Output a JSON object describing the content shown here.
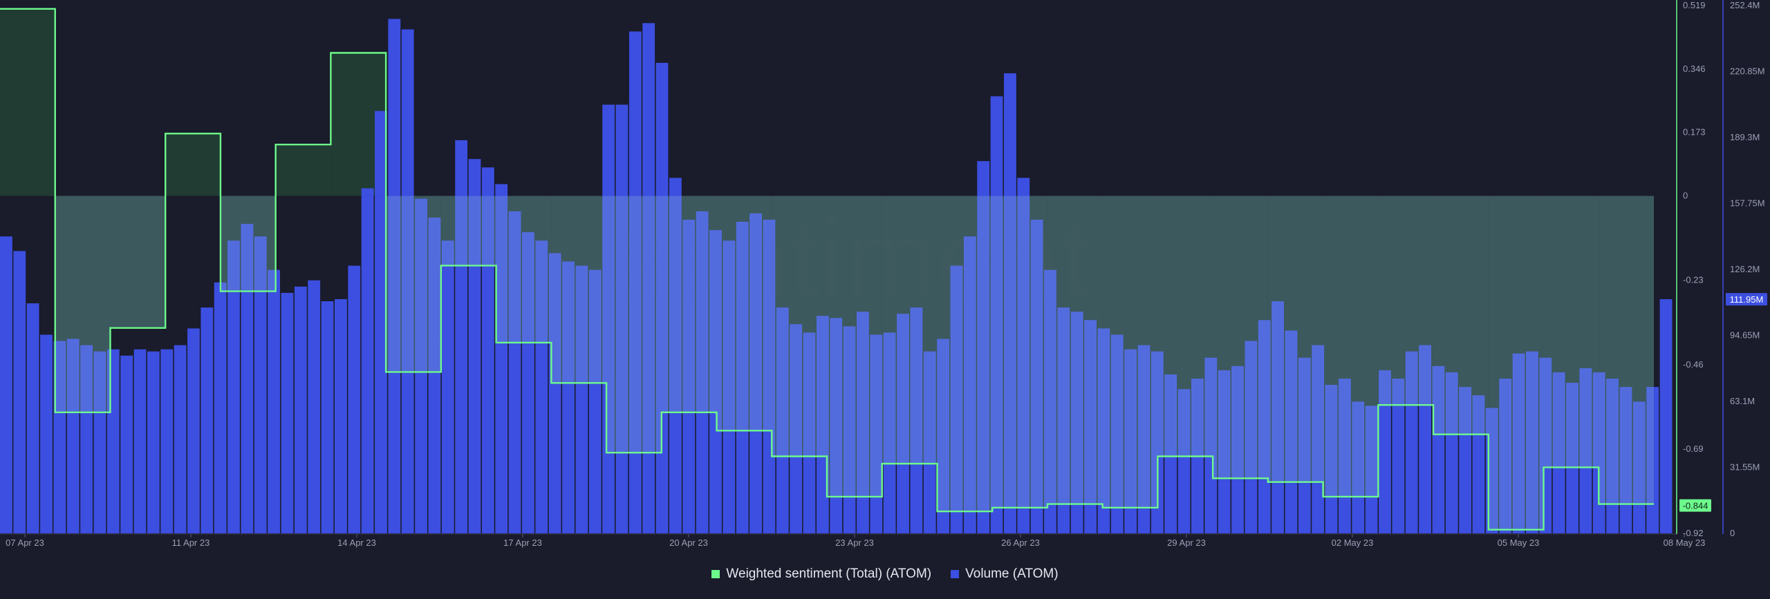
{
  "colors": {
    "background": "#1a1b2b",
    "sentiment": "#6dfb8c",
    "volume": "#3c4fe0",
    "volume_light": "#4f72dc",
    "fill_positive": "#224034",
    "axis_text": "#9aa0b5",
    "price_tag_volume": "#3c4fe0",
    "price_tag_sentiment": "#6dfb8c"
  },
  "watermark": "santiment",
  "legend": {
    "sentiment": "Weighted sentiment (Total) (ATOM)",
    "volume": "Volume (ATOM)"
  },
  "current_values": {
    "sentiment": "-0.844",
    "volume": "111.95M"
  },
  "chart_data": {
    "type": "line",
    "x_tick_labels": [
      "07 Apr 23",
      "11 Apr 23",
      "14 Apr 23",
      "17 Apr 23",
      "20 Apr 23",
      "23 Apr 23",
      "26 Apr 23",
      "29 Apr 23",
      "02 May 23",
      "05 May 23",
      "08 May 23"
    ],
    "sentiment_axis": {
      "ticks": [
        "0.519",
        "0.346",
        "0.173",
        "0",
        "-0.23",
        "-0.46",
        "-0.69",
        "-0.92"
      ],
      "range": [
        -0.92,
        0.519
      ]
    },
    "volume_axis": {
      "ticks": [
        "252.4M",
        "220.85M",
        "189.3M",
        "157.75M",
        "126.2M",
        "94.65M",
        "63.1M",
        "31.55M",
        "0"
      ],
      "range_millions": [
        0,
        252.4
      ]
    },
    "series": [
      {
        "name": "Weighted sentiment (Total) (ATOM)",
        "kind": "step",
        "values": [
          0.51,
          -0.59,
          -0.36,
          0.17,
          -0.26,
          0.14,
          0.39,
          -0.48,
          -0.19,
          -0.4,
          -0.51,
          -0.7,
          -0.59,
          -0.64,
          -0.71,
          -0.82,
          -0.73,
          -0.86,
          -0.85,
          -0.84,
          -0.85,
          -0.71,
          -0.77,
          -0.78,
          -0.82,
          -0.57,
          -0.65,
          -0.91,
          -0.74,
          -0.84
        ]
      },
      {
        "name": "Volume (ATOM)",
        "kind": "bars",
        "unit": "M",
        "values": [
          142,
          135,
          110,
          95,
          92,
          93,
          90,
          87,
          88,
          85,
          88,
          87,
          88,
          90,
          98,
          108,
          120,
          140,
          148,
          142,
          126,
          115,
          118,
          121,
          111,
          112,
          128,
          165,
          202,
          246,
          241,
          160,
          151,
          140,
          188,
          179,
          175,
          167,
          154,
          144,
          140,
          134,
          130,
          128,
          126,
          205,
          205,
          240,
          244,
          225,
          170,
          150,
          154,
          145,
          140,
          149,
          153,
          150,
          108,
          100,
          96,
          104,
          103,
          99,
          106,
          95,
          96,
          105,
          108,
          87,
          93,
          128,
          142,
          178,
          209,
          220,
          170,
          150,
          126,
          108,
          106,
          102,
          98,
          95,
          88,
          90,
          87,
          76,
          69,
          74,
          84,
          78,
          80,
          92,
          102,
          111,
          97,
          84,
          90,
          71,
          74,
          63,
          61,
          78,
          74,
          87,
          90,
          80,
          77,
          70,
          66,
          60,
          74,
          86,
          87,
          84,
          77,
          72,
          79,
          77,
          74,
          70,
          63,
          70,
          112
        ]
      }
    ],
    "xlabel": "",
    "ylabel": "",
    "grid": false,
    "legend_position": "bottom-center"
  }
}
